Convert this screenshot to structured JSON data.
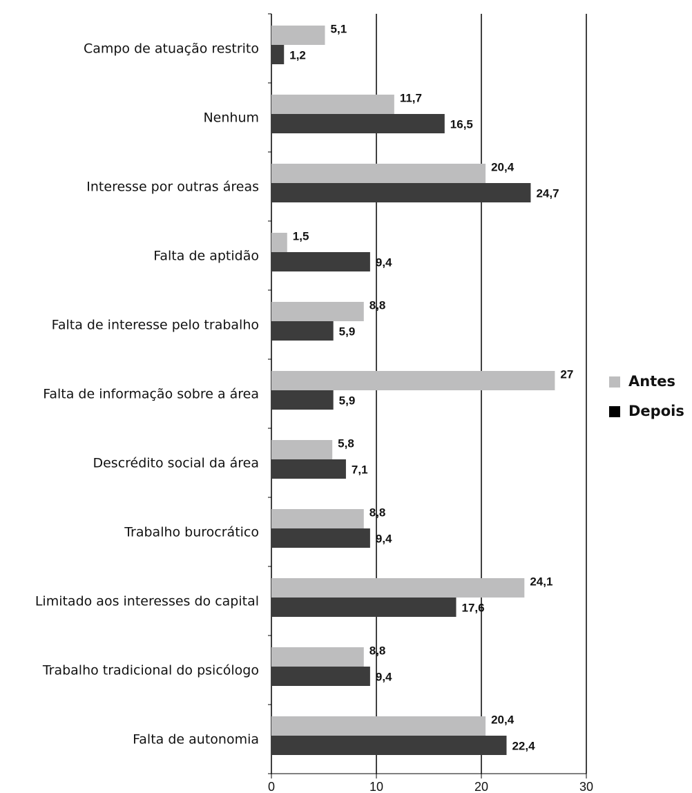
{
  "chart_data": {
    "type": "hbar",
    "categories": [
      "Campo de atuação restrito",
      "Nenhum",
      "Interesse por outras áreas",
      "Falta de aptidão",
      "Falta de interesse pelo trabalho",
      "Falta de informação sobre a área",
      "Descrédito social da área",
      "Trabalho burocrático",
      "Limitado aos interesses do capital",
      "Trabalho tradicional do psicólogo",
      "Falta de autonomia"
    ],
    "series": [
      {
        "name": "Antes",
        "color": "#bdbdbe",
        "values": [
          5.1,
          11.7,
          20.4,
          1.5,
          8.8,
          27,
          5.8,
          8.8,
          24.1,
          8.8,
          20.4
        ],
        "value_labels": [
          "5,1",
          "11,7",
          "20,4",
          "1,5",
          "8,8",
          "27",
          "5,8",
          "8,8",
          "24,1",
          "8,8",
          "20,4"
        ]
      },
      {
        "name": "Depois",
        "color": "#3c3c3c",
        "values": [
          1.2,
          16.5,
          24.7,
          9.4,
          5.9,
          5.9,
          7.1,
          9.4,
          17.6,
          9.4,
          22.4
        ],
        "value_labels": [
          "1,2",
          "16,5",
          "24,7",
          "9,4",
          "5,9",
          "5,9",
          "7,1",
          "9,4",
          "17,6",
          "9,4",
          "22,4"
        ]
      }
    ],
    "xlim": [
      0,
      30
    ],
    "xticks": [
      0,
      10,
      20,
      30
    ],
    "grid": true,
    "legend": "right"
  }
}
